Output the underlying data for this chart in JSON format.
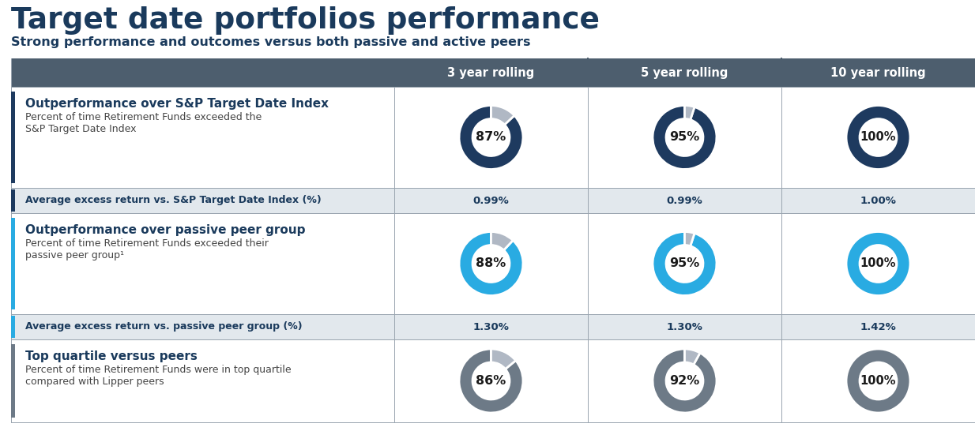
{
  "title": "Target date portfolios performance",
  "subtitle": "Strong performance and outcomes versus both passive and active peers",
  "col_headers": [
    "3 year rolling",
    "5 year rolling",
    "10 year rolling"
  ],
  "rows": [
    {
      "label": "Outperformance over S&P Target Date Index",
      "sublabel_lines": [
        "Percent of time Retirement Funds exceeded the",
        "S&P Target Date Index"
      ],
      "accent_color": "#1e3a5f",
      "donut_color": "#1e3a5f",
      "donut_bg": "#b0b8c4",
      "values": [
        87,
        95,
        100
      ],
      "text_values": [
        "87%",
        "95%",
        "100%"
      ],
      "has_bottom_row": true,
      "bottom_label": "Average excess return vs. S&P Target Date Index (%)",
      "bottom_values": [
        "0.99%",
        "0.99%",
        "1.00%"
      ]
    },
    {
      "label": "Outperformance over passive peer group",
      "sublabel_lines": [
        "Percent of time Retirement Funds exceeded their",
        "passive peer group¹"
      ],
      "accent_color": "#29abe2",
      "donut_color": "#29abe2",
      "donut_bg": "#b0b8c4",
      "values": [
        88,
        95,
        100
      ],
      "text_values": [
        "88%",
        "95%",
        "100%"
      ],
      "has_bottom_row": true,
      "bottom_label": "Average excess return vs. passive peer group (%)",
      "bottom_values": [
        "1.30%",
        "1.30%",
        "1.42%"
      ]
    },
    {
      "label": "Top quartile versus peers",
      "sublabel_lines": [
        "Percent of time Retirement Funds were in top quartile",
        "compared with Lipper peers"
      ],
      "accent_color": "#6d7a87",
      "donut_color": "#6d7a87",
      "donut_bg": "#b0b8c4",
      "values": [
        86,
        92,
        100
      ],
      "text_values": [
        "86%",
        "92%",
        "100%"
      ],
      "has_bottom_row": false,
      "bottom_label": "",
      "bottom_values": []
    }
  ],
  "bg_color": "#ffffff",
  "header_bg": "#4d5e6e",
  "header_text": "#ffffff",
  "grid_line_color": "#9aa5b0",
  "title_color": "#1a3a5c",
  "subtitle_color": "#1a3a5c",
  "label_color": "#1a3a5c",
  "bottom_row_bg": "#e2e8ed",
  "donut_text_color": "#1a1a1a",
  "figw": 12.34,
  "figh": 5.65,
  "dpi": 100
}
